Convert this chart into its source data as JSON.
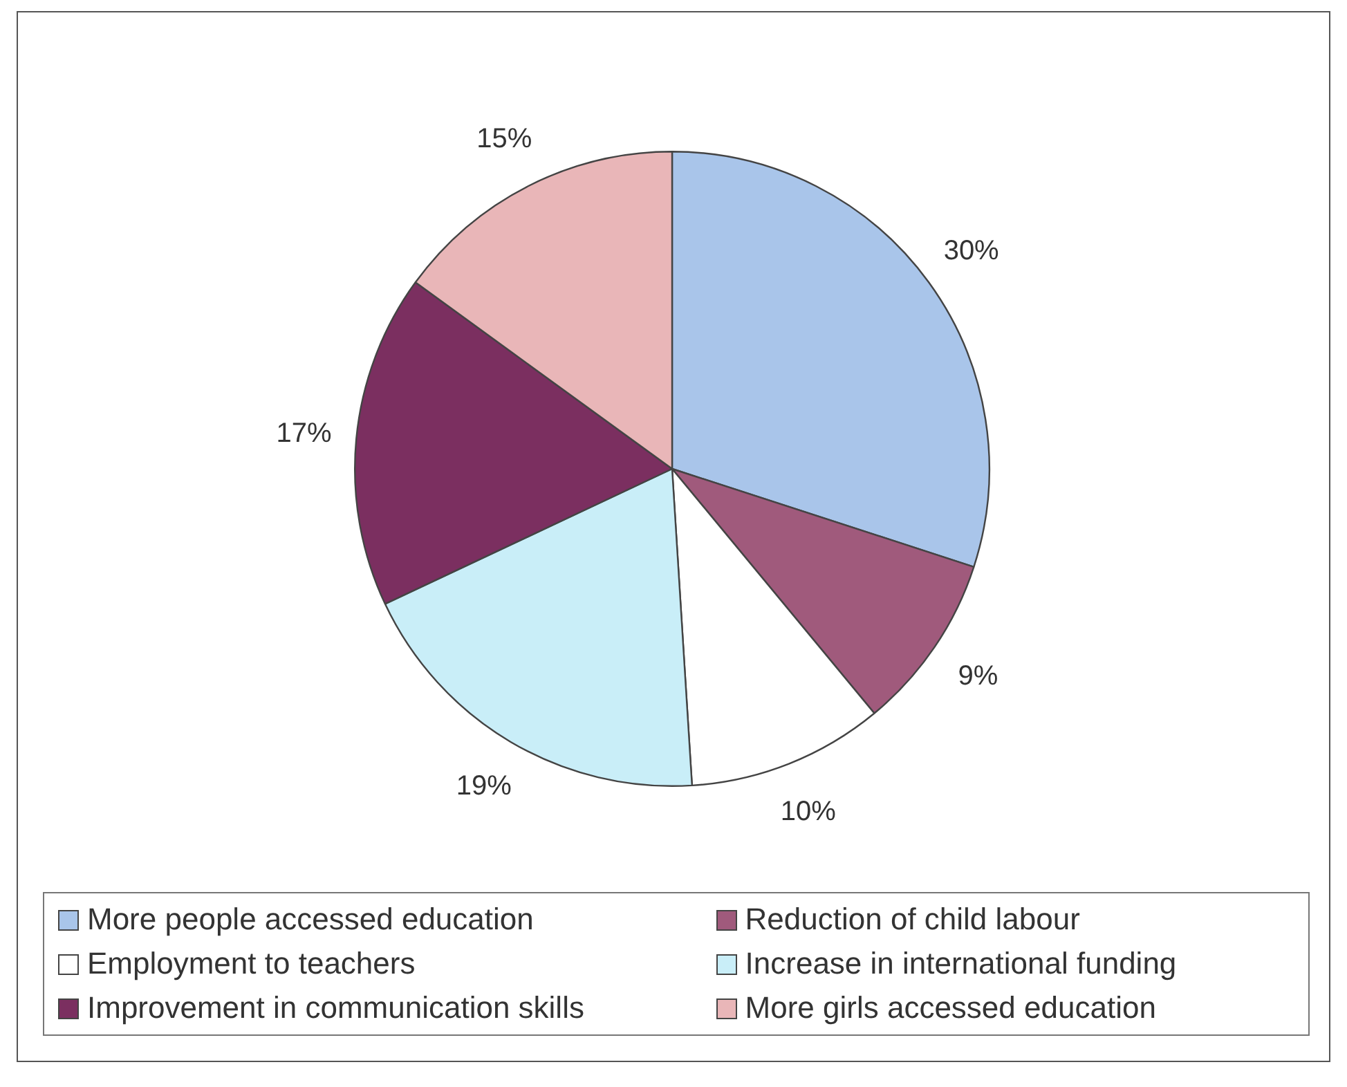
{
  "chart_data": {
    "type": "pie",
    "categories": [
      "More people accessed education",
      "Reduction of child labour",
      "Employment to teachers",
      "Increase in international funding",
      "Improvement in communication skills",
      "More girls accessed education"
    ],
    "values": [
      30,
      9,
      10,
      19,
      17,
      15
    ],
    "colors": [
      "#a9c5ea",
      "#a05a7c",
      "#ffffff",
      "#c9eef8",
      "#7b2f60",
      "#e9b6b8"
    ],
    "value_labels": [
      "30%",
      "9%",
      "10%",
      "19%",
      "17%",
      "15%"
    ],
    "legend": "bottom"
  }
}
